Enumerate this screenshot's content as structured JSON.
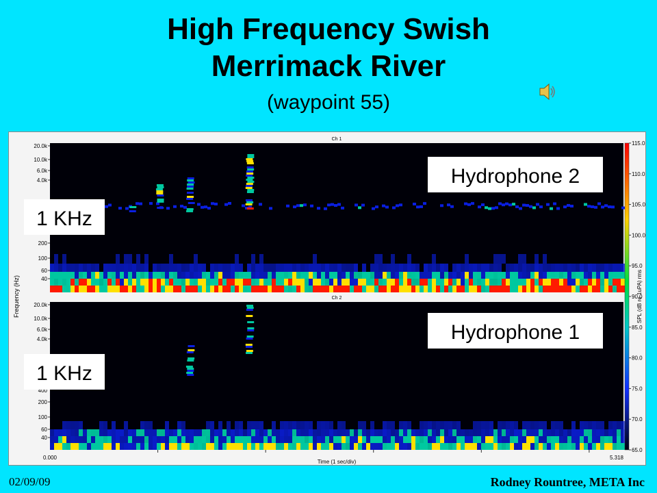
{
  "slide": {
    "title_line1": "High Frequency Swish",
    "title_line2": "Merrimack River",
    "subtitle": "(waypoint 55)",
    "date": "02/09/09",
    "author": "Rodney Rountree, META Inc",
    "sound_icon": "speaker-icon"
  },
  "chart_data": {
    "type": "heatmap",
    "panels": [
      {
        "channel": "Ch 1",
        "overlay_label": "Hydrophone 2",
        "frequency_marker": "1 KHz",
        "events": [
          {
            "t": 0.76,
            "band": "1k"
          },
          {
            "t": 1.02,
            "band": "1k-4k"
          },
          {
            "t": 1.3,
            "band": "1k-6k"
          },
          {
            "t": 1.85,
            "band": "1k-20k"
          }
        ]
      },
      {
        "channel": "Ch 2",
        "overlay_label": "Hydrophone 1",
        "frequency_marker": "1 KHz",
        "events": [
          {
            "t": 1.3,
            "band": "1k-3k"
          },
          {
            "t": 1.85,
            "band": "3k-20k"
          }
        ]
      }
    ],
    "y_ticks": [
      "20.0k",
      "10.0k",
      "6.0k",
      "4.0k",
      "200",
      "100",
      "60",
      "40"
    ],
    "y_ticks_ch2_extra": "400",
    "ylabel": "Frequency (Hz)",
    "x_ticks": [
      "0.000",
      "5.318"
    ],
    "xlabel": "Time (1 sec/div)",
    "x_range": [
      0,
      5.318
    ],
    "colorbar": {
      "label": "SPL (dB re 1uPA) rms",
      "ticks": [
        "115.0",
        "110.0",
        "105.0",
        "100.0",
        "95.0",
        "90.0",
        "85.0",
        "80.0",
        "75.0",
        "70.0",
        "65.0"
      ],
      "range": [
        65,
        115
      ]
    },
    "colors": {
      "background": "#000008",
      "low": "#0a1fe0",
      "mid": "#00c8a0",
      "high": "#ffe000",
      "max": "#ff1a00"
    }
  }
}
